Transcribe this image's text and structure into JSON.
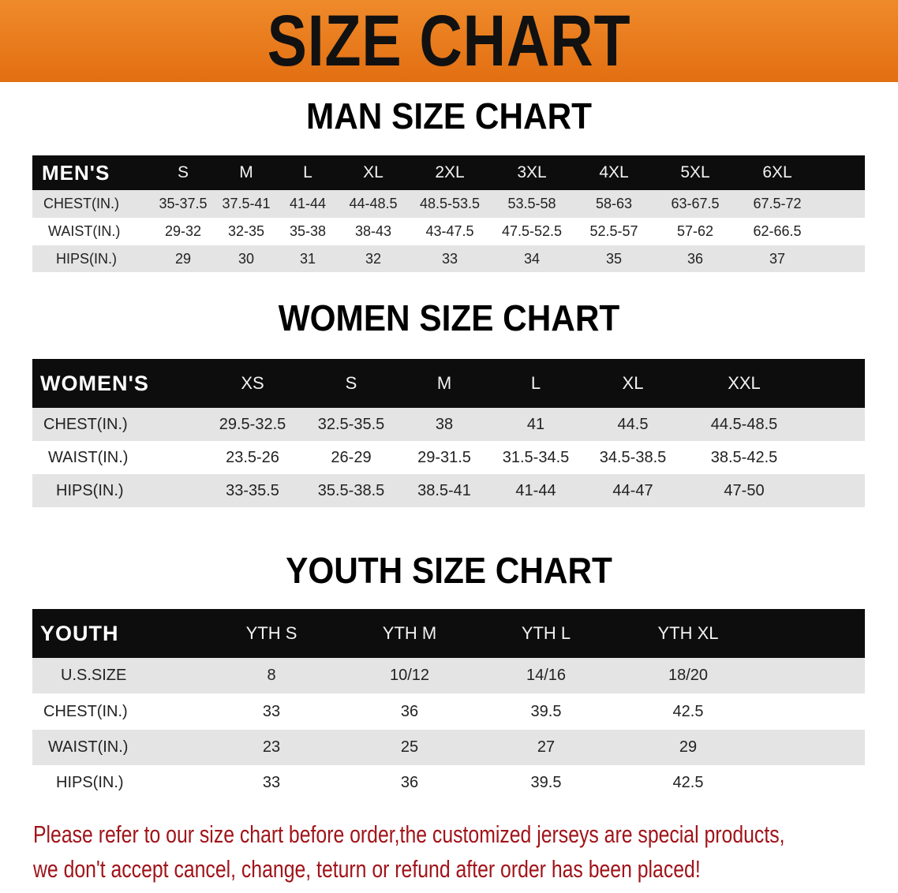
{
  "banner": {
    "title": "SIZE CHART",
    "color": "#e8781c"
  },
  "men": {
    "title": "MAN SIZE CHART",
    "header": [
      "MEN'S",
      "S",
      "M",
      "L",
      "XL",
      "2XL",
      "3XL",
      "4XL",
      "5XL",
      "6XL"
    ],
    "rows": [
      [
        "CHEST(IN.)",
        "35-37.5",
        "37.5-41",
        "41-44",
        "44-48.5",
        "48.5-53.5",
        "53.5-58",
        "58-63",
        "63-67.5",
        "67.5-72"
      ],
      [
        "WAIST(IN.)",
        "29-32",
        "32-35",
        "35-38",
        "38-43",
        "43-47.5",
        "47.5-52.5",
        "52.5-57",
        "57-62",
        "62-66.5"
      ],
      [
        "HIPS(IN.)",
        "29",
        "30",
        "31",
        "32",
        "33",
        "34",
        "35",
        "36",
        "37"
      ]
    ]
  },
  "women": {
    "title": "WOMEN SIZE CHART",
    "header": [
      "WOMEN'S",
      "XS",
      "S",
      "M",
      "L",
      "XL",
      "XXL"
    ],
    "rows": [
      [
        "CHEST(IN.)",
        "29.5-32.5",
        "32.5-35.5",
        "38",
        "41",
        "44.5",
        "44.5-48.5"
      ],
      [
        "WAIST(IN.)",
        "23.5-26",
        "26-29",
        "29-31.5",
        "31.5-34.5",
        "34.5-38.5",
        "38.5-42.5"
      ],
      [
        "HIPS(IN.)",
        "33-35.5",
        "35.5-38.5",
        "38.5-41",
        "41-44",
        "44-47",
        "47-50"
      ]
    ]
  },
  "youth": {
    "title": "YOUTH SIZE CHART",
    "header": [
      "YOUTH",
      "YTH S",
      "YTH M",
      "YTH L",
      "YTH XL"
    ],
    "rows": [
      [
        "U.S.SIZE",
        "8",
        "10/12",
        "14/16",
        "18/20"
      ],
      [
        "CHEST(IN.)",
        "33",
        "36",
        "39.5",
        "42.5"
      ],
      [
        "WAIST(IN.)",
        "23",
        "25",
        "27",
        "29"
      ],
      [
        "HIPS(IN.)",
        "33",
        "36",
        "39.5",
        "42.5"
      ]
    ]
  },
  "notice": {
    "line1": "Please refer to our size chart before order,the customized jerseys are special products,",
    "line2": "we don't accept cancel, change, teturn or refund after order has been placed!",
    "color": "#a0141a"
  }
}
